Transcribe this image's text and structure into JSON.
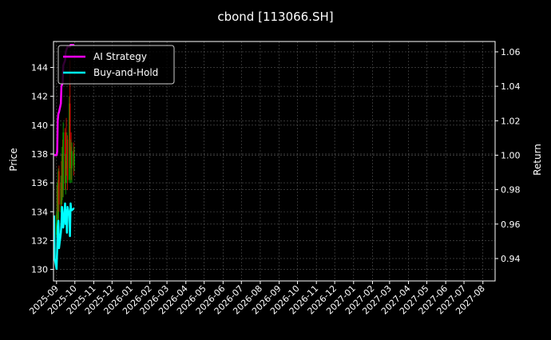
{
  "chart_data": {
    "type": "candlestick+line",
    "title": "cbond [113066.SH]",
    "ylabel": "Price",
    "y2label": "Return",
    "ylim": [
      129.2,
      145.8
    ],
    "y2lim": [
      0.927,
      1.066
    ],
    "xlim": [
      "2025-08-27",
      "2027-08-21"
    ],
    "yticks": [
      130,
      132,
      134,
      136,
      138,
      140,
      142,
      144
    ],
    "y2ticks": [
      "0.94",
      "0.96",
      "0.98",
      "1.00",
      "1.02",
      "1.04",
      "1.06"
    ],
    "xticks": [
      "2025-09",
      "2025-10",
      "2025-11",
      "2025-12",
      "2026-01",
      "2026-02",
      "2026-03",
      "2026-04",
      "2026-05",
      "2026-06",
      "2026-07",
      "2026-08",
      "2026-09",
      "2026-10",
      "2026-11",
      "2026-12",
      "2027-01",
      "2027-02",
      "2027-03",
      "2027-04",
      "2027-05",
      "2027-06",
      "2027-07",
      "2027-08"
    ],
    "grid": true,
    "legend": {
      "placement": "top-left",
      "entries": [
        "AI Strategy",
        "Buy-and-Hold"
      ]
    },
    "colors": {
      "up": "#00aa00",
      "down": "#dd1100",
      "ai_strategy": "#ff00ff",
      "buy_and_hold": "#00ffff",
      "background": "#000000"
    },
    "dates": [
      "2025-08-28",
      "2025-08-29",
      "2025-09-01",
      "2025-09-02",
      "2025-09-03",
      "2025-09-04",
      "2025-09-05",
      "2025-09-08",
      "2025-09-09",
      "2025-09-10",
      "2025-09-11",
      "2025-09-12",
      "2025-09-15",
      "2025-09-16",
      "2025-09-17",
      "2025-09-18",
      "2025-09-19",
      "2025-09-22",
      "2025-09-23",
      "2025-09-24",
      "2025-09-25",
      "2025-09-26",
      "2025-09-29",
      "2025-09-30"
    ],
    "ohlc": [
      [
        132.0,
        133.5,
        131.5,
        133.2
      ],
      [
        133.2,
        133.6,
        132.0,
        132.4
      ],
      [
        132.4,
        134.0,
        132.2,
        133.8
      ],
      [
        133.8,
        136.0,
        133.5,
        135.8
      ],
      [
        135.8,
        136.2,
        133.0,
        133.5
      ],
      [
        133.5,
        137.0,
        133.2,
        136.8
      ],
      [
        136.8,
        137.2,
        134.0,
        134.5
      ],
      [
        134.5,
        136.5,
        134.0,
        136.0
      ],
      [
        136.0,
        137.5,
        134.2,
        134.8
      ],
      [
        134.8,
        138.5,
        134.5,
        138.0
      ],
      [
        138.0,
        139.0,
        135.0,
        135.5
      ],
      [
        135.5,
        140.2,
        135.0,
        139.5
      ],
      [
        139.5,
        139.8,
        135.5,
        136.0
      ],
      [
        136.0,
        138.0,
        135.2,
        137.5
      ],
      [
        137.5,
        140.5,
        136.5,
        137.0
      ],
      [
        137.0,
        139.5,
        136.0,
        139.0
      ],
      [
        139.0,
        139.3,
        135.5,
        136.2
      ],
      [
        136.2,
        142.0,
        136.0,
        141.5
      ],
      [
        141.5,
        144.5,
        137.0,
        138.0
      ],
      [
        138.0,
        139.0,
        136.0,
        138.5
      ],
      [
        138.5,
        139.5,
        136.2,
        137.0
      ],
      [
        137.0,
        138.8,
        136.0,
        138.2
      ],
      [
        138.2,
        138.8,
        136.5,
        137.2
      ],
      [
        137.2,
        138.5,
        136.8,
        138.0
      ]
    ],
    "series": [
      {
        "name": "AI Strategy",
        "values": [
          1.0,
          1.0,
          1.0,
          1.002,
          1.02,
          1.024,
          1.025,
          1.03,
          1.04,
          1.041,
          1.042,
          1.052,
          1.055,
          1.06,
          1.061,
          1.062,
          1.063,
          1.063,
          1.063,
          1.064,
          1.064,
          1.064,
          1.064,
          1.064
        ]
      },
      {
        "name": "Buy-and-Hold",
        "values": [
          0.965,
          0.94,
          0.934,
          0.945,
          0.958,
          0.962,
          0.946,
          0.955,
          0.96,
          0.97,
          0.962,
          0.958,
          0.972,
          0.96,
          0.968,
          0.955,
          0.97,
          0.965,
          0.953,
          0.972,
          0.968,
          0.968,
          0.969,
          0.969
        ]
      }
    ]
  }
}
